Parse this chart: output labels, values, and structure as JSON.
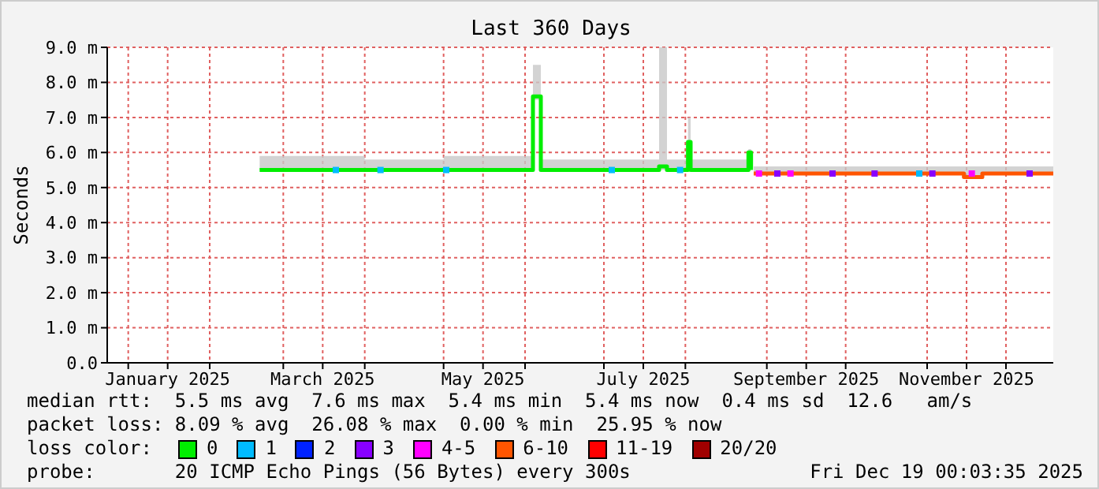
{
  "chart_data": {
    "type": "line",
    "title": "Last 360 Days",
    "ylabel": "Seconds",
    "legend_title": "loss color:",
    "legend": "bottom",
    "grid": true,
    "line_style": "solid",
    "xlim": [
      "2024-12-24",
      "2025-12-19"
    ],
    "xticks": [
      {
        "value": "2025-01-01",
        "label": null
      },
      {
        "value": "2025-01-16",
        "label": "January 2025"
      },
      {
        "value": "2025-02-01",
        "label": null
      },
      {
        "value": "2025-03-01",
        "label": null
      },
      {
        "value": "2025-03-16",
        "label": "March 2025"
      },
      {
        "value": "2025-04-01",
        "label": null
      },
      {
        "value": "2025-05-01",
        "label": null
      },
      {
        "value": "2025-05-16",
        "label": "May 2025"
      },
      {
        "value": "2025-06-01",
        "label": null
      },
      {
        "value": "2025-07-01",
        "label": null
      },
      {
        "value": "2025-07-16",
        "label": "July 2025"
      },
      {
        "value": "2025-08-01",
        "label": null
      },
      {
        "value": "2025-09-01",
        "label": null
      },
      {
        "value": "2025-09-16",
        "label": "September 2025"
      },
      {
        "value": "2025-10-01",
        "label": null
      },
      {
        "value": "2025-11-01",
        "label": null
      },
      {
        "value": "2025-11-16",
        "label": "November 2025"
      },
      {
        "value": "2025-12-01",
        "label": null
      }
    ],
    "ylim": [
      0,
      9
    ],
    "yticks": [
      {
        "value": 0,
        "label": "0.0"
      },
      {
        "value": 1,
        "label": "1.0 m"
      },
      {
        "value": 2,
        "label": "2.0 m"
      },
      {
        "value": 3,
        "label": "3.0 m"
      },
      {
        "value": 4,
        "label": "4.0 m"
      },
      {
        "value": 5,
        "label": "5.0 m"
      },
      {
        "value": 6,
        "label": "6.0 m"
      },
      {
        "value": 7,
        "label": "7.0 m"
      },
      {
        "value": 8,
        "label": "8.0 m"
      },
      {
        "value": 9,
        "label": "9.0 m"
      }
    ],
    "series": [
      {
        "name": "0",
        "marker": "none",
        "color": "#00ee00",
        "x": [
          "2025-02-20",
          "2025-03-01",
          "2025-04-01",
          "2025-05-01",
          "2025-06-03",
          "2025-06-04",
          "2025-06-06",
          "2025-06-07",
          "2025-07-01",
          "2025-07-21",
          "2025-07-22",
          "2025-07-25",
          "2025-08-01",
          "2025-08-02",
          "2025-08-03",
          "2025-08-24",
          "2025-08-25",
          "2025-08-26"
        ],
        "values": [
          5.5,
          5.5,
          5.5,
          5.5,
          5.5,
          7.6,
          7.6,
          5.5,
          5.5,
          5.5,
          5.6,
          5.5,
          5.5,
          6.3,
          5.5,
          5.5,
          6.0,
          5.5
        ],
        "lower": [
          5.5,
          5.5,
          5.5,
          5.5,
          5.5,
          7.5,
          7.5,
          5.5,
          5.5,
          5.5,
          5.5,
          5.5,
          5.5,
          5.5,
          5.5,
          5.5,
          5.5,
          5.5
        ],
        "upper": [
          5.9,
          5.9,
          5.8,
          5.9,
          5.9,
          8.5,
          8.5,
          5.8,
          5.8,
          5.8,
          9.0,
          5.8,
          5.8,
          7.0,
          5.8,
          5.8,
          6.1,
          5.8
        ]
      },
      {
        "name": "1",
        "type": "scatter",
        "marker": "square",
        "color": "#00bbff",
        "x": [
          "2025-03-21",
          "2025-04-07",
          "2025-05-02",
          "2025-07-04",
          "2025-07-30",
          "2025-10-29"
        ],
        "values": [
          5.5,
          5.5,
          5.5,
          5.5,
          5.5,
          5.4
        ]
      },
      {
        "name": "2",
        "type": "scatter",
        "marker": "square",
        "color": "#0022ff"
      },
      {
        "name": "3",
        "type": "scatter",
        "marker": "square",
        "color": "#8800ff",
        "x": [
          "2025-09-05",
          "2025-09-26",
          "2025-10-12",
          "2025-11-03",
          "2025-12-10"
        ],
        "values": [
          5.4,
          5.4,
          5.4,
          5.4,
          5.4
        ]
      },
      {
        "name": "4-5",
        "type": "scatter",
        "marker": "square",
        "color": "#ff00ff",
        "x": [
          "2025-08-29",
          "2025-09-10",
          "2025-11-18"
        ],
        "values": [
          5.4,
          5.4,
          5.4
        ]
      },
      {
        "name": "6-10",
        "marker": "none",
        "color": "#ff5500",
        "x": [
          "2025-08-27",
          "2025-09-15",
          "2025-10-15",
          "2025-11-10",
          "2025-11-15",
          "2025-11-22",
          "2025-12-19"
        ],
        "values": [
          5.4,
          5.4,
          5.4,
          5.4,
          5.3,
          5.4,
          5.4
        ],
        "lower": [
          5.4,
          5.4,
          5.4,
          5.4,
          5.3,
          5.4,
          5.4
        ],
        "upper": [
          5.6,
          5.6,
          5.6,
          5.6,
          5.6,
          5.6,
          5.6
        ]
      },
      {
        "name": "11-19",
        "type": "scatter",
        "marker": "square",
        "color": "#ff0000"
      },
      {
        "name": "20/20",
        "type": "scatter",
        "marker": "square",
        "color": "#a00000"
      }
    ],
    "annotations": [
      "median rtt:  5.5 ms avg  7.6 ms max  5.4 ms min  5.4 ms now  0.4 ms sd  12.6   am/s",
      "packet loss: 8.09 % avg  26.08 % max  0.00 % min  25.95 % now",
      "probe:       20 ICMP Echo Pings (56 Bytes) every 300s",
      "Fri Dec 19 00:03:35 2025"
    ]
  }
}
